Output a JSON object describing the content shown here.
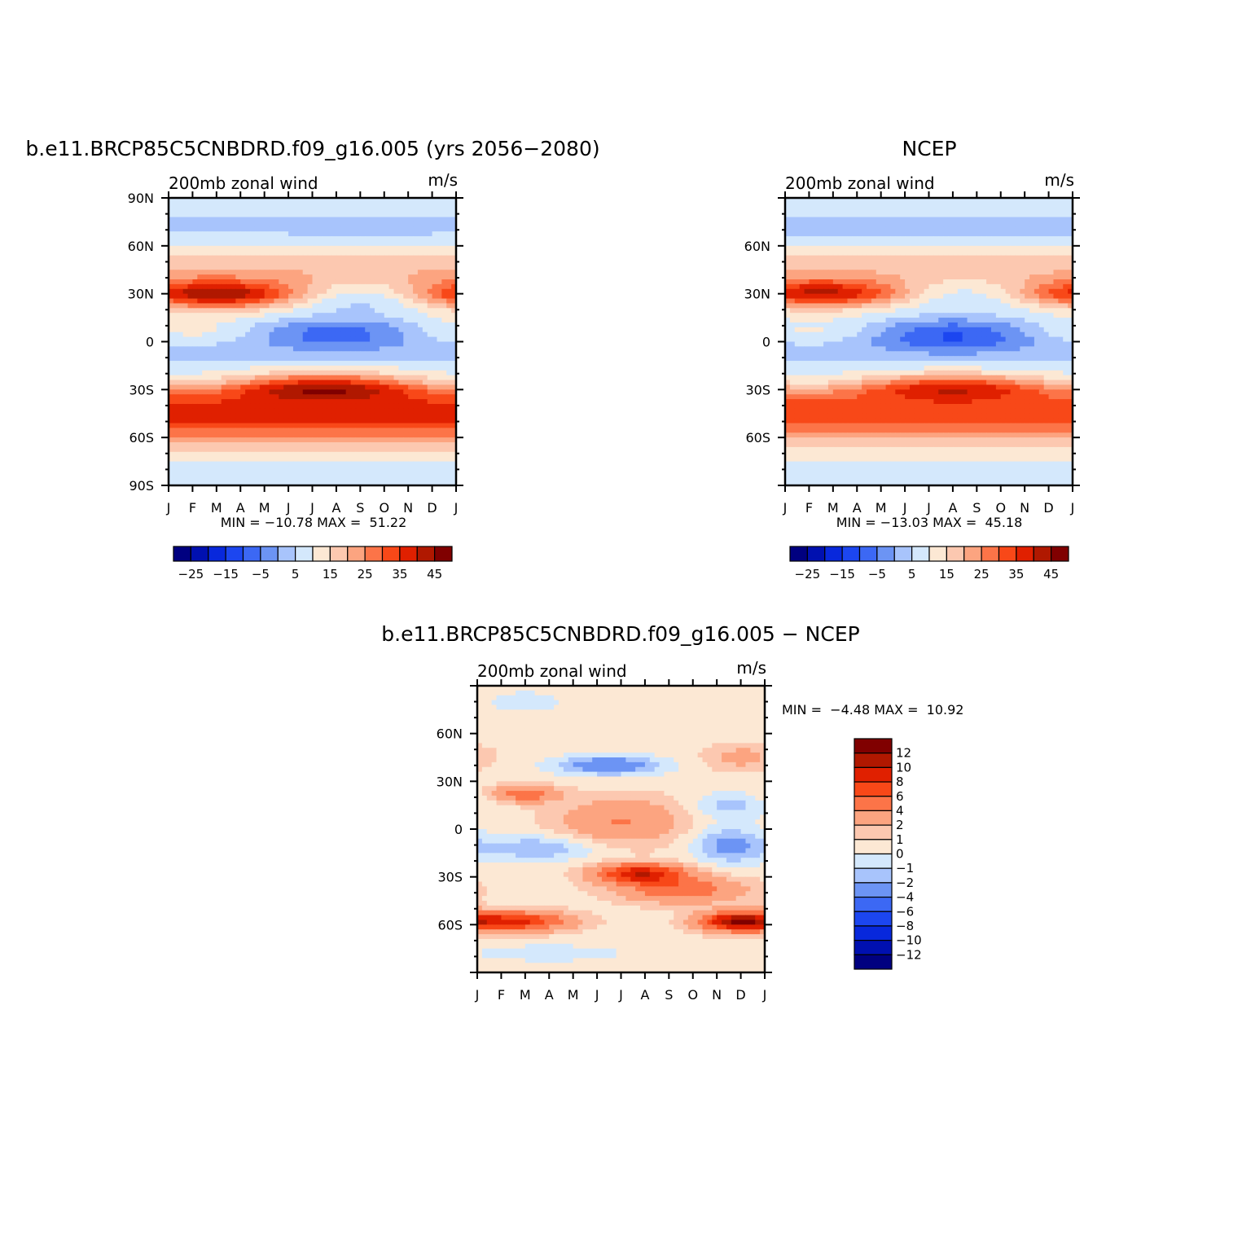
{
  "colors": {
    "model_scale": [
      "#000080",
      "#0010b0",
      "#0828dc",
      "#1c46f0",
      "#3c68f4",
      "#6c94f4",
      "#a8c4fc",
      "#d4e8fc",
      "#fce8d4",
      "#fcc8b0",
      "#fca480",
      "#fc7448",
      "#f84818",
      "#e02000",
      "#b01800",
      "#800000"
    ],
    "diff_scale": [
      "#000080",
      "#0010b0",
      "#0828dc",
      "#1c46f0",
      "#3c68f4",
      "#6c94f4",
      "#a8c4fc",
      "#d4e8fc",
      "#fce8d4",
      "#fcc8b0",
      "#fca480",
      "#fc7448",
      "#f84818",
      "#e02000",
      "#b01800",
      "#800000"
    ]
  },
  "chart_data": [
    {
      "type": "heatmap",
      "id": "model",
      "title": "b.e11.BRCP85C5CNBDRD.f09_g16.005 (yrs 2056−2080)",
      "left_label": "200mb  zonal wind",
      "right_label": "m/s",
      "x_tick_labels": [
        "J",
        "F",
        "M",
        "A",
        "M",
        "J",
        "J",
        "A",
        "S",
        "O",
        "N",
        "D",
        "J"
      ],
      "y_tick_labels": [
        "90N",
        "60N",
        "30N",
        "0",
        "30S",
        "60S",
        "90S"
      ],
      "y_tick_values": [
        90,
        60,
        30,
        0,
        -30,
        -60,
        -90
      ],
      "ylim": [
        -90,
        90
      ],
      "stats": {
        "min_label": "MIN =",
        "min": "−10.78",
        "max_label": "MAX =",
        "max": "51.22"
      },
      "colorbar_labels": [
        "−25",
        "−15",
        "−5",
        "5",
        "15",
        "25",
        "35",
        "45"
      ],
      "field": {
        "lat_profile": [
          [
            -90,
            7
          ],
          [
            -75,
            9
          ],
          [
            -65,
            18
          ],
          [
            -50,
            35
          ],
          [
            -40,
            37
          ],
          [
            -30,
            36
          ],
          [
            -20,
            14
          ],
          [
            -12,
            5
          ],
          [
            0,
            0
          ],
          [
            10,
            3
          ],
          [
            20,
            12
          ],
          [
            30,
            28
          ],
          [
            40,
            22
          ],
          [
            55,
            15
          ],
          [
            70,
            3
          ],
          [
            80,
            6
          ],
          [
            90,
            8
          ]
        ],
        "seasonal": [
          {
            "lat": 29,
            "width": 9,
            "amplitude": 18,
            "phase_month": 2
          },
          {
            "lat": -28,
            "width": 8,
            "amplitude": 12,
            "phase_month": 6.5
          },
          {
            "lat": 6,
            "width": 10,
            "amplitude": -9,
            "phase_month": 7
          }
        ]
      }
    },
    {
      "type": "heatmap",
      "id": "ncep",
      "title": "NCEP",
      "left_label": "200mb  zonal wind",
      "right_label": "m/s",
      "x_tick_labels": [
        "J",
        "F",
        "M",
        "A",
        "M",
        "J",
        "J",
        "A",
        "S",
        "O",
        "N",
        "D",
        "J"
      ],
      "y_tick_labels": [
        "60N",
        "30N",
        "0",
        "30S",
        "60S"
      ],
      "y_tick_values": [
        60,
        30,
        0,
        -30,
        -60
      ],
      "ylim": [
        -90,
        90
      ],
      "stats": {
        "min_label": "MIN =",
        "min": "−13.03",
        "max_label": "MAX =",
        "max": "45.18"
      },
      "colorbar_labels": [
        "−25",
        "−15",
        "−5",
        "5",
        "15",
        "25",
        "35",
        "45"
      ],
      "field": {
        "lat_profile": [
          [
            -90,
            7
          ],
          [
            -75,
            9
          ],
          [
            -65,
            16
          ],
          [
            -50,
            32
          ],
          [
            -40,
            33
          ],
          [
            -30,
            32
          ],
          [
            -20,
            13
          ],
          [
            -12,
            4
          ],
          [
            0,
            -2
          ],
          [
            10,
            2
          ],
          [
            20,
            11
          ],
          [
            30,
            26
          ],
          [
            40,
            21
          ],
          [
            55,
            14
          ],
          [
            70,
            3
          ],
          [
            80,
            6
          ],
          [
            90,
            8
          ]
        ],
        "seasonal": [
          {
            "lat": 30,
            "width": 9,
            "amplitude": 16,
            "phase_month": 1.5
          },
          {
            "lat": -28,
            "width": 8,
            "amplitude": 10,
            "phase_month": 7
          },
          {
            "lat": 5,
            "width": 10,
            "amplitude": -10,
            "phase_month": 7
          }
        ]
      }
    },
    {
      "type": "heatmap",
      "id": "diff",
      "title": "b.e11.BRCP85C5CNBDRD.f09_g16.005 − NCEP",
      "left_label": "200mb  zonal wind",
      "right_label": "m/s",
      "x_tick_labels": [
        "J",
        "F",
        "M",
        "A",
        "M",
        "J",
        "J",
        "A",
        "S",
        "O",
        "N",
        "D",
        "J"
      ],
      "y_tick_labels": [
        "60N",
        "30N",
        "0",
        "30S",
        "60S"
      ],
      "y_tick_values": [
        60,
        30,
        0,
        -30,
        -60
      ],
      "ylim": [
        -90,
        90
      ],
      "stats": {
        "min_label": "MIN =",
        "min": "−4.48",
        "max_label": "MAX =",
        "max": "10.92"
      },
      "colorbar_labels": [
        "12",
        "10",
        "8",
        "6",
        "4",
        "2",
        "1",
        "0",
        "−1",
        "−2",
        "−4",
        "−6",
        "−8",
        "−10",
        "−12"
      ],
      "field": {
        "blobs": [
          {
            "lat": -58,
            "month": 1.5,
            "lat_w": 6,
            "mon_w": 2.2,
            "amp": 8
          },
          {
            "lat": -58,
            "month": 10.8,
            "lat_w": 6,
            "mon_w": 1.5,
            "amp": 10
          },
          {
            "lat": -28,
            "month": 6.8,
            "lat_w": 6,
            "mon_w": 1.8,
            "amp": 9
          },
          {
            "lat": -38,
            "month": 8.5,
            "lat_w": 8,
            "mon_w": 2.5,
            "amp": 5
          },
          {
            "lat": 22,
            "month": 2,
            "lat_w": 5,
            "mon_w": 1.3,
            "amp": 5
          },
          {
            "lat": 5,
            "month": 6,
            "lat_w": 14,
            "mon_w": 2.5,
            "amp": 3.5
          },
          {
            "lat": 40,
            "month": 5.5,
            "lat_w": 6,
            "mon_w": 2.2,
            "amp": -4
          },
          {
            "lat": -12,
            "month": 2.5,
            "lat_w": 8,
            "mon_w": 2.5,
            "amp": -2.5
          },
          {
            "lat": -10,
            "month": 10.5,
            "lat_w": 12,
            "mon_w": 1.5,
            "amp": -3
          },
          {
            "lat": 15,
            "month": 10.5,
            "lat_w": 8,
            "mon_w": 1.5,
            "amp": -2
          },
          {
            "lat": -78,
            "month": 3,
            "lat_w": 5,
            "mon_w": 3,
            "amp": -1.5
          },
          {
            "lat": 80,
            "month": 2,
            "lat_w": 6,
            "mon_w": 1.5,
            "amp": -1.5
          },
          {
            "lat": 45,
            "month": 11,
            "lat_w": 8,
            "mon_w": 1.5,
            "amp": 2
          }
        ],
        "base": 0.6
      }
    }
  ]
}
